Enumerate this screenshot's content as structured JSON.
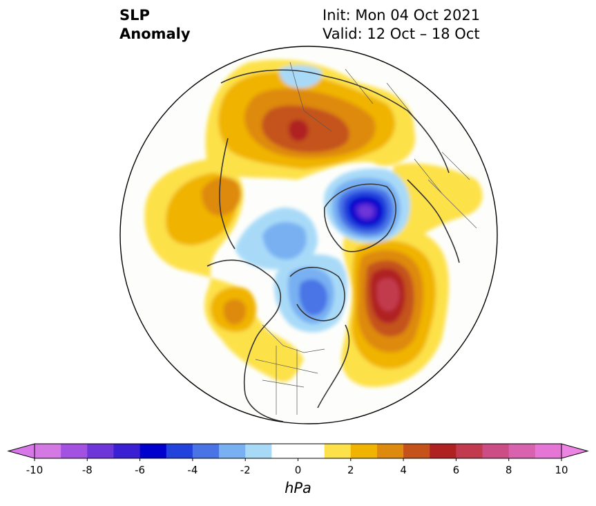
{
  "title": {
    "left_lines": [
      "SLP",
      "Anomaly"
    ],
    "right_lines": [
      "Init: Mon 04 Oct 2021",
      "Valid: 12 Oct – 18 Oct"
    ]
  },
  "colorbar": {
    "unit": "hPa",
    "min": -10,
    "max": 10,
    "extend": "both",
    "ticks": [
      {
        "value": -10,
        "label": "-10"
      },
      {
        "value": -8,
        "label": "-8"
      },
      {
        "value": -6,
        "label": "-6"
      },
      {
        "value": -4,
        "label": "-4"
      },
      {
        "value": -2,
        "label": "-2"
      },
      {
        "value": 0,
        "label": "0"
      },
      {
        "value": 2,
        "label": "2"
      },
      {
        "value": 4,
        "label": "4"
      },
      {
        "value": 6,
        "label": "6"
      },
      {
        "value": 8,
        "label": "8"
      },
      {
        "value": 10,
        "label": "10"
      }
    ],
    "colors": [
      "#d478e4",
      "#a351e0",
      "#6e35d8",
      "#3b1fd2",
      "#0000cc",
      "#2242dc",
      "#4a74e6",
      "#78b0f2",
      "#a8daf8",
      "#ffffff",
      "#ffffff",
      "#fde14a",
      "#f0b400",
      "#de8a0e",
      "#c4521a",
      "#b02222",
      "#c23a4e",
      "#cc4c86",
      "#d862ae",
      "#e676d6"
    ],
    "under_color": "#d878e8",
    "over_color": "#ec84e4"
  },
  "map": {
    "projection": "north polar stereographic",
    "features": [
      {
        "name": "strong positive anomaly over North Atlantic",
        "level": 7
      },
      {
        "name": "positive anomaly over northern Eurasia",
        "level": 7
      },
      {
        "name": "positive anomaly over eastern Pacific",
        "level": 4
      },
      {
        "name": "positive anomaly over North Pacific",
        "level": 3
      },
      {
        "name": "positive anomaly over western North America",
        "level": 3
      },
      {
        "name": "negative anomaly over Greenland Sea / Svalbard",
        "level": -9
      },
      {
        "name": "negative anomaly over Hudson Bay",
        "level": -5
      },
      {
        "name": "negative anomaly over Alaska / Beaufort Sea",
        "level": -2
      },
      {
        "name": "negative anomaly over Siberian Arctic",
        "level": -2
      }
    ]
  }
}
